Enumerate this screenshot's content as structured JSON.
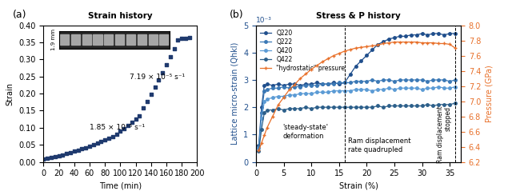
{
  "chart_data": [
    {
      "type": "scatter",
      "panel": "(a)",
      "title": "Strain history",
      "x_label": "Time (min)",
      "y_label": "Strain",
      "x": [
        0,
        5,
        10,
        15,
        20,
        25,
        30,
        35,
        40,
        45,
        50,
        55,
        60,
        65,
        70,
        75,
        80,
        85,
        90,
        95,
        100,
        105,
        110,
        115,
        120,
        125,
        130,
        135,
        140,
        145,
        150,
        155,
        160,
        165,
        170,
        175,
        180,
        185,
        190
      ],
      "values": [
        0.008,
        0.01,
        0.012,
        0.015,
        0.018,
        0.021,
        0.024,
        0.027,
        0.031,
        0.034,
        0.038,
        0.042,
        0.046,
        0.05,
        0.054,
        0.059,
        0.064,
        0.069,
        0.074,
        0.08,
        0.09,
        0.098,
        0.106,
        0.115,
        0.125,
        0.135,
        0.158,
        0.178,
        0.198,
        0.218,
        0.24,
        0.262,
        0.285,
        0.308,
        0.332,
        0.357,
        0.362,
        0.363,
        0.364
      ],
      "color": "#1f3a6e",
      "marker": "square",
      "xlim": [
        0,
        200
      ],
      "xticks": [
        0,
        20,
        40,
        60,
        80,
        100,
        120,
        140,
        160,
        180,
        200
      ],
      "ylim": [
        0,
        0.4
      ],
      "yticks": [
        {
          "value": 0,
          "label": "0.00"
        },
        {
          "value": 0.05,
          "label": "0.05"
        },
        {
          "value": 0.1,
          "label": "0.10"
        },
        {
          "value": 0.15,
          "label": "0.15"
        },
        {
          "value": 0.2,
          "label": "0.20"
        },
        {
          "value": 0.25,
          "label": "0.25"
        },
        {
          "value": 0.3,
          "label": "0.30"
        },
        {
          "value": 0.35,
          "label": "0.35"
        },
        {
          "value": 0.4,
          "label": "0.40"
        }
      ],
      "annotations": [
        "1.85 × 10⁻⁵ s⁻¹",
        "7.19 × 10⁻⁵ s⁻¹"
      ],
      "image_label": "1.9 mm"
    },
    {
      "type": "line",
      "panel": "(b)",
      "title": "Stress & P history",
      "x_label": "Strain (%)",
      "y_label": "Lattice micro-strain (Qhkl)",
      "y_multiplier": "10⁻³",
      "y2_label": "Pressure (GPa)",
      "x": [
        0.5,
        1,
        1.5,
        2,
        3,
        4,
        5,
        6,
        7,
        8,
        9,
        10,
        11,
        12,
        13,
        14,
        15,
        16,
        17,
        18,
        19,
        20,
        21,
        22,
        23,
        24,
        25,
        26,
        27,
        28,
        29,
        30,
        31,
        32,
        33,
        34,
        35,
        36
      ],
      "series": [
        {
          "name": "Q220",
          "color": "#1f4e8c",
          "marker": "circle",
          "values": [
            0.6,
            2.0,
            2.8,
            2.85,
            2.8,
            2.85,
            2.8,
            2.85,
            2.85,
            2.8,
            2.85,
            2.85,
            2.9,
            2.85,
            2.85,
            2.9,
            2.85,
            2.9,
            3.2,
            3.5,
            3.7,
            3.9,
            4.1,
            4.3,
            4.4,
            4.5,
            4.55,
            4.6,
            4.6,
            4.65,
            4.65,
            4.7,
            4.65,
            4.7,
            4.7,
            4.65,
            4.7,
            4.7
          ]
        },
        {
          "name": "Q222",
          "color": "#3a78b5",
          "marker": "circle",
          "values": [
            0.5,
            1.8,
            2.6,
            2.65,
            2.7,
            2.7,
            2.75,
            2.7,
            2.75,
            2.75,
            2.8,
            2.8,
            2.8,
            2.85,
            2.85,
            2.85,
            2.9,
            2.9,
            2.9,
            2.95,
            2.95,
            2.95,
            3.0,
            2.95,
            3.0,
            3.0,
            2.95,
            3.0,
            3.0,
            3.0,
            3.0,
            3.0,
            2.95,
            3.0,
            3.0,
            3.0,
            2.95,
            3.0
          ]
        },
        {
          "name": "Q420",
          "color": "#5b9bd5",
          "marker": "circle",
          "values": [
            0.5,
            1.6,
            2.2,
            2.3,
            2.35,
            2.4,
            2.4,
            2.45,
            2.45,
            2.5,
            2.5,
            2.5,
            2.55,
            2.55,
            2.55,
            2.6,
            2.6,
            2.6,
            2.6,
            2.65,
            2.65,
            2.65,
            2.6,
            2.65,
            2.65,
            2.7,
            2.65,
            2.7,
            2.7,
            2.7,
            2.7,
            2.65,
            2.7,
            2.7,
            2.75,
            2.7,
            2.7,
            2.75
          ]
        },
        {
          "name": "Q422",
          "color": "#2c5f8a",
          "marker": "circle",
          "values": [
            0.4,
            1.2,
            1.8,
            1.9,
            1.9,
            1.95,
            1.9,
            1.95,
            1.95,
            1.95,
            2.0,
            1.95,
            2.0,
            2.0,
            2.0,
            2.0,
            2.0,
            2.0,
            2.0,
            2.0,
            2.0,
            2.0,
            2.0,
            2.05,
            2.0,
            2.05,
            2.05,
            2.05,
            2.05,
            2.05,
            2.05,
            2.05,
            2.1,
            2.05,
            2.1,
            2.1,
            2.1,
            2.15
          ]
        },
        {
          "name": "\"hydrostatic\" pressure",
          "color": "#e8702a",
          "marker": "plus",
          "axis": "y2",
          "values": [
            6.35,
            6.45,
            6.55,
            6.65,
            6.8,
            6.95,
            7.05,
            7.15,
            7.22,
            7.3,
            7.36,
            7.42,
            7.47,
            7.52,
            7.56,
            7.6,
            7.63,
            7.66,
            7.68,
            7.7,
            7.71,
            7.72,
            7.73,
            7.74,
            7.76,
            7.77,
            7.78,
            7.78,
            7.78,
            7.78,
            7.78,
            7.77,
            7.77,
            7.77,
            7.76,
            7.76,
            7.75,
            7.7
          ]
        }
      ],
      "xlim": [
        0,
        37
      ],
      "xticks": [
        0,
        5,
        10,
        15,
        20,
        25,
        30,
        35
      ],
      "ylim": [
        0,
        5
      ],
      "yticks": [
        0,
        1,
        2,
        3,
        4,
        5
      ],
      "y2lim": [
        6.2,
        8.0
      ],
      "y2ticks": [
        6.2,
        6.4,
        6.6,
        6.8,
        7.0,
        7.2,
        7.4,
        7.6,
        7.8,
        8.0
      ],
      "vlines": [
        16,
        36
      ],
      "annotations": [
        "'steady-state'\ndeformation",
        "Ram displacement\nrate quadrupled",
        "Ram displacement\nstopped"
      ],
      "legend": "upper left"
    }
  ]
}
